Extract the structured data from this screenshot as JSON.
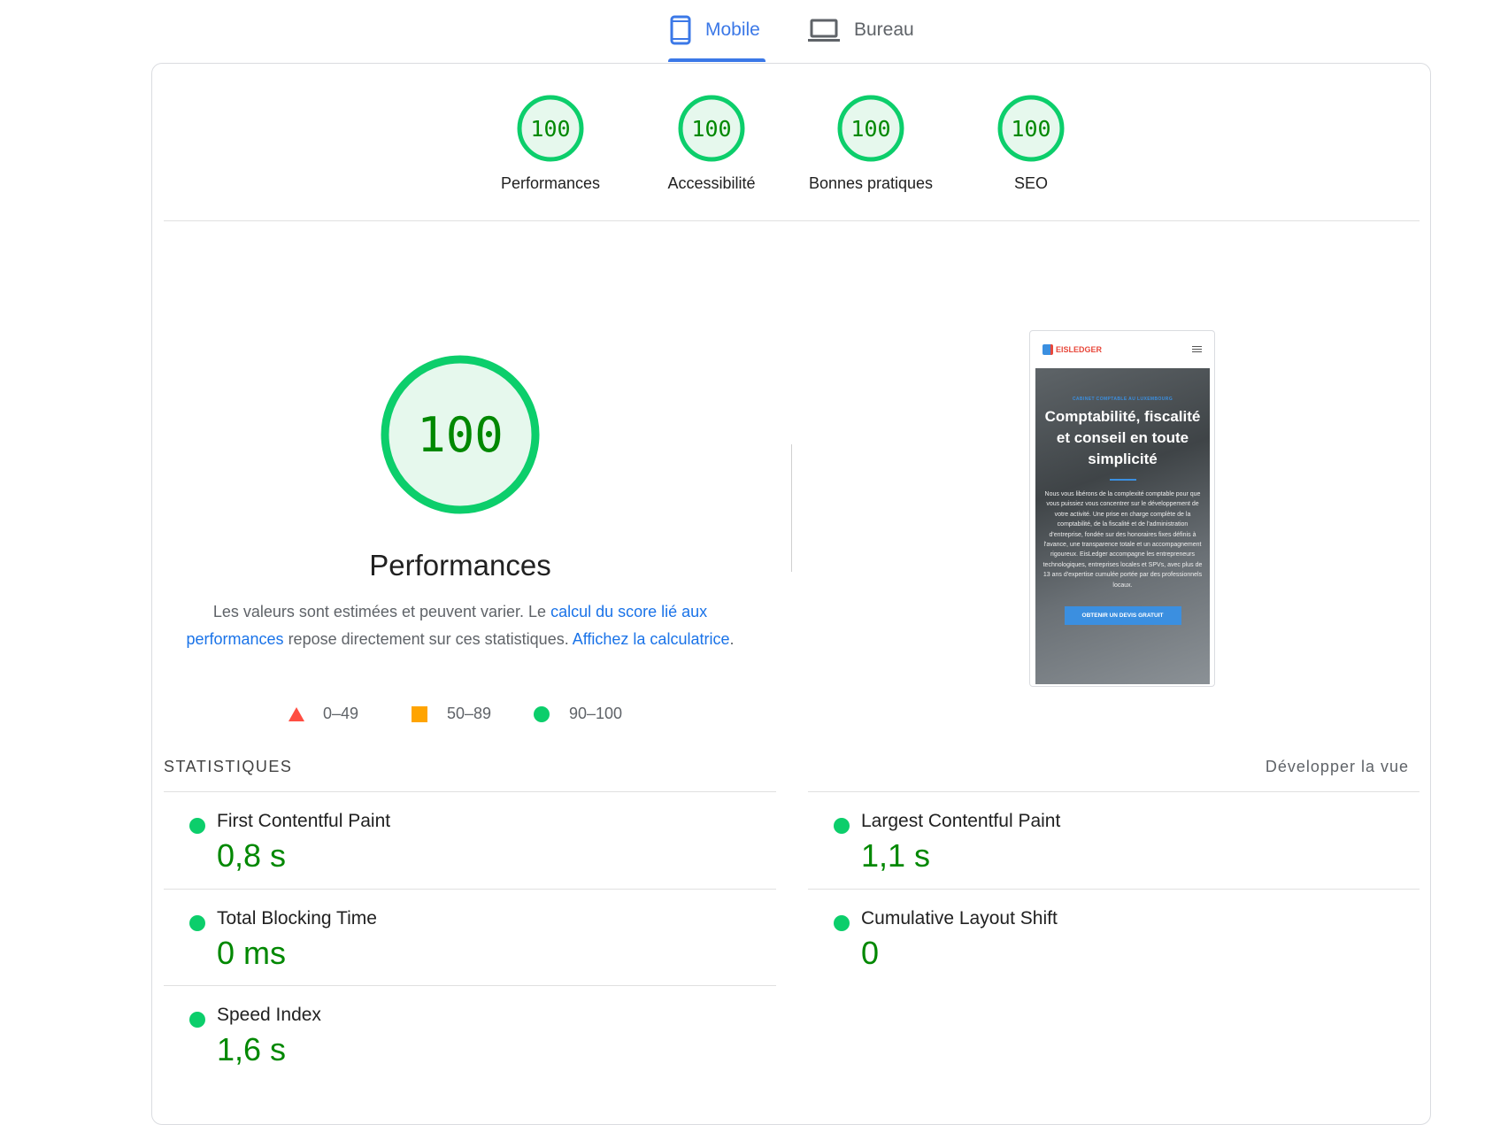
{
  "tabs": [
    {
      "label": "Mobile",
      "icon": "smartphone-icon",
      "active": true
    },
    {
      "label": "Bureau",
      "icon": "laptop-icon",
      "active": false
    }
  ],
  "colors": {
    "pass": "#0cce6b",
    "pass_text": "#008800",
    "average": "#ffa400",
    "fail": "#ff4e42",
    "accent": "#3b78e7",
    "link": "#1a73e8"
  },
  "categories": [
    {
      "label": "Performances",
      "score": "100"
    },
    {
      "label": "Accessibilité",
      "score": "100"
    },
    {
      "label": "Bonnes pratiques",
      "score": "100"
    },
    {
      "label": "SEO",
      "score": "100"
    }
  ],
  "main": {
    "score": "100",
    "title": "Performances",
    "desc_1": "Les valeurs sont estimées et peuvent varier. Le ",
    "link_1": "calcul du score lié aux performances",
    "desc_2": " repose directement sur ces statistiques. ",
    "link_2": "Affichez la calculatrice",
    "desc_3": "."
  },
  "legend": [
    {
      "range": "0–49",
      "icon": "triangle-icon"
    },
    {
      "range": "50–89",
      "icon": "square-icon"
    },
    {
      "range": "90–100",
      "icon": "circle-icon"
    }
  ],
  "screenshot": {
    "brand": "EISLEDGER",
    "kicker": "CABINET COMPTABLE AU LUXEMBOURG",
    "headline": "Comptabilité, fiscalité et conseil en toute simplicité",
    "body": "Nous vous libérons de la complexité comptable pour que vous puissiez vous concentrer sur le développement de votre activité. Une prise en charge complète de la comptabilité, de la fiscalité et de l'administration d'entreprise, fondée sur des honoraires fixes définis à l'avance, une transparence totale et un accompagnement rigoureux. EisLedger accompagne les entrepreneurs technologiques, entreprises locales et SPVs, avec plus de 13 ans d'expertise cumulée portée par des professionnels locaux.",
    "cta": "OBTENIR UN DEVIS GRATUIT"
  },
  "stats": {
    "heading": "STATISTIQUES",
    "expand": "Développer la vue",
    "metrics": [
      {
        "label": "First Contentful Paint",
        "value": "0,8 s"
      },
      {
        "label": "Largest Contentful Paint",
        "value": "1,1 s"
      },
      {
        "label": "Total Blocking Time",
        "value": "0 ms"
      },
      {
        "label": "Cumulative Layout Shift",
        "value": "0"
      },
      {
        "label": "Speed Index",
        "value": "1,6 s"
      }
    ]
  }
}
